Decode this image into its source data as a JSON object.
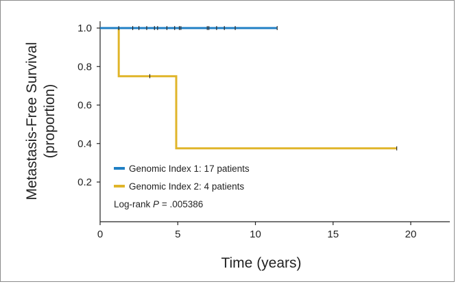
{
  "chart_data": {
    "type": "line",
    "title": "",
    "xlabel": "Time (years)",
    "ylabel_lines": [
      "Metastasis-Free Survival",
      "(proportion)"
    ],
    "xlim": [
      0,
      22.5
    ],
    "ylim": [
      0.1,
      1.05
    ],
    "x_ticks": [
      0,
      5,
      10,
      15,
      20
    ],
    "x_tick_labels": [
      "0",
      "5",
      "10",
      "15",
      "20"
    ],
    "y_ticks": [
      0.2,
      0.4,
      0.6,
      0.8,
      1.0
    ],
    "y_tick_labels": [
      "0.2",
      "0.4",
      "0.6",
      "0.8",
      "1.0"
    ],
    "grid": false,
    "legend_position": "bottom-left",
    "series": [
      {
        "name": "Genomic Index 1: 17 patients",
        "color": "#1f7fc4",
        "step_points": [
          [
            0,
            1.0
          ],
          [
            11.4,
            1.0
          ]
        ],
        "censored": [
          1.2,
          2.1,
          2.5,
          3.0,
          3.5,
          3.7,
          4.3,
          4.8,
          5.1,
          5.2,
          6.9,
          7.0,
          7.5,
          8.0,
          8.7,
          11.4
        ]
      },
      {
        "name": "Genomic Index 2: 4 patients",
        "color": "#e0b52a",
        "step_points": [
          [
            0,
            1.0
          ],
          [
            1.2,
            1.0
          ],
          [
            1.2,
            0.75
          ],
          [
            4.9,
            0.75
          ],
          [
            4.9,
            0.375
          ],
          [
            19.1,
            0.375
          ]
        ],
        "censored_points": [
          [
            3.2,
            0.75
          ],
          [
            19.1,
            0.375
          ]
        ]
      }
    ],
    "annotation": {
      "prefix": "Log-rank ",
      "p_symbol": "P",
      "suffix": " = .005386"
    }
  }
}
